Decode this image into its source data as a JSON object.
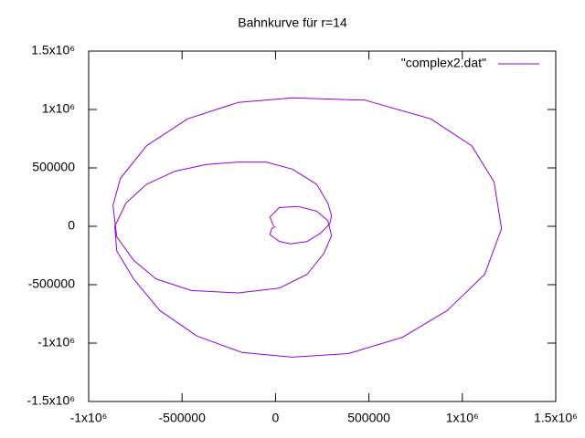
{
  "chart_data": {
    "type": "line",
    "title": "Bahnkurve für r=14",
    "series": [
      {
        "name": "\"complex2.dat\"",
        "color": "#9400d3",
        "x": [
          0,
          -20000,
          -30000,
          20000,
          80000,
          170000,
          240000,
          290000,
          300000,
          280000,
          220000,
          90000,
          -50000,
          -200000,
          -370000,
          -540000,
          -690000,
          -800000,
          -860000,
          -850000,
          -760000,
          -620000,
          -420000,
          -180000,
          90000,
          390000,
          680000,
          920000,
          1120000,
          1210000,
          1170000,
          1050000,
          830000,
          480000,
          90000,
          -200000,
          -470000,
          -690000,
          -830000,
          -870000,
          -850000,
          -760000,
          -640000,
          -450000,
          -200000,
          20000,
          170000,
          260000,
          300000,
          280000,
          220000,
          120000,
          20000,
          -30000,
          -10000
        ],
        "y": [
          0,
          -20000,
          -70000,
          -130000,
          -150000,
          -130000,
          -60000,
          20000,
          90000,
          200000,
          360000,
          490000,
          550000,
          550000,
          530000,
          470000,
          360000,
          200000,
          0,
          -210000,
          -450000,
          -720000,
          -940000,
          -1080000,
          -1120000,
          -1090000,
          -950000,
          -720000,
          -410000,
          -20000,
          380000,
          690000,
          920000,
          1080000,
          1100000,
          1060000,
          920000,
          690000,
          410000,
          180000,
          -90000,
          -290000,
          -450000,
          -550000,
          -570000,
          -530000,
          -410000,
          -230000,
          -80000,
          50000,
          130000,
          170000,
          160000,
          80000,
          0
        ]
      }
    ],
    "xlim": [
      -1000000,
      1500000
    ],
    "xticks": [
      {
        "value": -1000000,
        "label": "-1x10⁶"
      },
      -500000,
      0,
      500000,
      {
        "value": 1000000,
        "label": "1x10⁶"
      },
      {
        "value": 1500000,
        "label": "1.5x10⁶"
      }
    ],
    "ylim": [
      -1500000,
      1500000
    ],
    "yticks": [
      {
        "value": -1500000,
        "label": "-1.5x10⁶"
      },
      {
        "value": -1000000,
        "label": "-1x10⁶"
      },
      -500000,
      0,
      500000,
      {
        "value": 1000000,
        "label": "1x10⁶"
      },
      {
        "value": 1500000,
        "label": "1.5x10⁶"
      }
    ],
    "legend": "top right",
    "grid": false
  }
}
